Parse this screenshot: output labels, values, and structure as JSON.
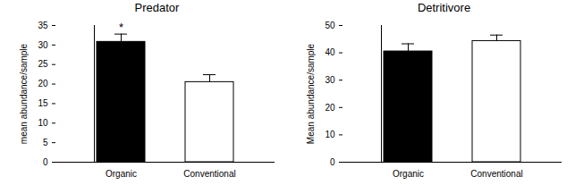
{
  "chart_data": [
    {
      "type": "bar",
      "title": "Predator",
      "ylabel": "mean abundance/sample",
      "categories": [
        "Organic",
        "Conventional"
      ],
      "values": [
        30.8,
        20.5
      ],
      "errors": [
        2.0,
        1.9
      ],
      "colors": [
        "#000000",
        "#ffffff"
      ],
      "ylim": [
        0,
        35
      ],
      "yticks": [
        0,
        5,
        10,
        15,
        20,
        25,
        30,
        35
      ],
      "annotations": [
        {
          "category": "Organic",
          "text": "*"
        }
      ]
    },
    {
      "type": "bar",
      "title": "Detritivore",
      "ylabel": "Mean abundance/sample",
      "categories": [
        "Organic",
        "Conventional"
      ],
      "values": [
        40.5,
        44.3
      ],
      "errors": [
        2.8,
        2.2
      ],
      "colors": [
        "#000000",
        "#ffffff"
      ],
      "ylim": [
        0,
        50
      ],
      "yticks": [
        0,
        10,
        20,
        30,
        40,
        50
      ]
    }
  ]
}
